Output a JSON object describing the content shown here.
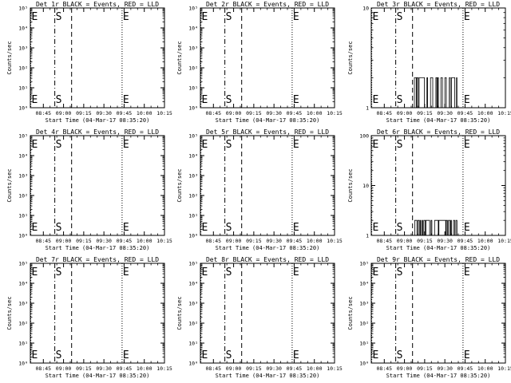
{
  "figure": {
    "type": "grid of detector count-rate plots",
    "layout": "3x3",
    "background": "#ffffff",
    "ink": "#000000"
  },
  "chart_data": [
    {
      "type": "line",
      "title": "Det 1r BLACK = Events, RED = LLD",
      "ylabel": "Counts/sec",
      "xlabel": "Start Time (04-Mar-17 08:35:20)",
      "x_ticks": [
        "08:45",
        "09:00",
        "09:15",
        "09:30",
        "09:45",
        "10:00",
        "10:15"
      ],
      "x_range": [
        "08:35:20",
        "10:15:00"
      ],
      "y_scale": "log",
      "y_ticks": [
        "10⁰",
        "10¹",
        "10²",
        "10³",
        "10⁴",
        "10⁵"
      ],
      "ylim": [
        1,
        100000
      ],
      "markers": [
        {
          "text": "E",
          "time": "08:35:40",
          "style": "dotted"
        },
        {
          "text": "S",
          "time": "08:53:30",
          "style": "dash-dot"
        },
        {
          "text": "",
          "time": "09:06:00",
          "style": "dashed"
        },
        {
          "text": "E",
          "time": "09:43:30",
          "style": "dotted"
        }
      ],
      "series": []
    },
    {
      "type": "line",
      "title": "Det 2r BLACK = Events, RED = LLD",
      "ylabel": "Counts/sec",
      "xlabel": "Start Time (04-Mar-17 08:35:20)",
      "x_ticks": [
        "08:45",
        "09:00",
        "09:15",
        "09:30",
        "09:45",
        "10:00",
        "10:15"
      ],
      "x_range": [
        "08:35:20",
        "10:15:00"
      ],
      "y_scale": "log",
      "y_ticks": [
        "10⁰",
        "10¹",
        "10²",
        "10³",
        "10⁴",
        "10⁵"
      ],
      "ylim": [
        1,
        100000
      ],
      "markers": [
        {
          "text": "E",
          "time": "08:35:40",
          "style": "dotted"
        },
        {
          "text": "S",
          "time": "08:53:30",
          "style": "dash-dot"
        },
        {
          "text": "",
          "time": "09:06:00",
          "style": "dashed"
        },
        {
          "text": "E",
          "time": "09:43:30",
          "style": "dotted"
        }
      ],
      "series": []
    },
    {
      "type": "line",
      "title": "Det 3r BLACK = Events, RED = LLD",
      "ylabel": "Counts/sec",
      "xlabel": "Start Time (04-Mar-17 08:35:20)",
      "x_ticks": [
        "08:45",
        "09:00",
        "09:15",
        "09:30",
        "09:45",
        "10:00",
        "10:15"
      ],
      "x_range": [
        "08:35:20",
        "10:15:00"
      ],
      "y_scale": "log",
      "y_ticks": [
        "1",
        "10"
      ],
      "ylim": [
        1,
        10
      ],
      "markers": [
        {
          "text": "E",
          "time": "08:35:40",
          "style": "dotted"
        },
        {
          "text": "S",
          "time": "08:53:30",
          "style": "dash-dot"
        },
        {
          "text": "",
          "time": "09:06:00",
          "style": "dashed"
        },
        {
          "text": "E",
          "time": "09:43:30",
          "style": "dotted"
        }
      ],
      "series": [
        {
          "kind": "binary-spikes",
          "t_start": "09:06:30",
          "t_end": "09:39:00",
          "low": 1,
          "high": 2
        }
      ]
    },
    {
      "type": "line",
      "title": "Det 4r BLACK = Events, RED = LLD",
      "ylabel": "Counts/sec",
      "xlabel": "Start Time (04-Mar-17 08:35:20)",
      "x_ticks": [
        "08:45",
        "09:00",
        "09:15",
        "09:30",
        "09:45",
        "10:00",
        "10:15"
      ],
      "x_range": [
        "08:35:20",
        "10:15:00"
      ],
      "y_scale": "log",
      "y_ticks": [
        "10⁰",
        "10¹",
        "10²",
        "10³",
        "10⁴",
        "10⁵"
      ],
      "ylim": [
        1,
        100000
      ],
      "markers": [
        {
          "text": "E",
          "time": "08:35:40",
          "style": "dotted"
        },
        {
          "text": "S",
          "time": "08:53:30",
          "style": "dash-dot"
        },
        {
          "text": "",
          "time": "09:06:00",
          "style": "dashed"
        },
        {
          "text": "E",
          "time": "09:43:30",
          "style": "dotted"
        }
      ],
      "series": []
    },
    {
      "type": "line",
      "title": "Det 5r BLACK = Events, RED = LLD",
      "ylabel": "Counts/sec",
      "xlabel": "Start Time (04-Mar-17 08:35:20)",
      "x_ticks": [
        "08:45",
        "09:00",
        "09:15",
        "09:30",
        "09:45",
        "10:00",
        "10:15"
      ],
      "x_range": [
        "08:35:20",
        "10:15:00"
      ],
      "y_scale": "log",
      "y_ticks": [
        "10⁰",
        "10¹",
        "10²",
        "10³",
        "10⁴",
        "10⁵"
      ],
      "ylim": [
        1,
        100000
      ],
      "markers": [
        {
          "text": "E",
          "time": "08:35:40",
          "style": "dotted"
        },
        {
          "text": "S",
          "time": "08:53:30",
          "style": "dash-dot"
        },
        {
          "text": "",
          "time": "09:06:00",
          "style": "dashed"
        },
        {
          "text": "E",
          "time": "09:43:30",
          "style": "dotted"
        }
      ],
      "series": []
    },
    {
      "type": "line",
      "title": "Det 6r BLACK = Events, RED = LLD",
      "ylabel": "Counts/sec",
      "xlabel": "Start Time (04-Mar-17 08:35:20)",
      "x_ticks": [
        "08:45",
        "09:00",
        "09:15",
        "09:30",
        "09:45",
        "10:00",
        "10:15"
      ],
      "x_range": [
        "08:35:20",
        "10:15:00"
      ],
      "y_scale": "log",
      "y_ticks": [
        "1",
        "10",
        "100"
      ],
      "ylim": [
        1,
        100
      ],
      "markers": [
        {
          "text": "E",
          "time": "08:35:40",
          "style": "dotted"
        },
        {
          "text": "S",
          "time": "08:53:30",
          "style": "dash-dot"
        },
        {
          "text": "",
          "time": "09:06:00",
          "style": "dashed"
        },
        {
          "text": "E",
          "time": "09:43:30",
          "style": "dotted"
        }
      ],
      "series": [
        {
          "kind": "binary-spikes",
          "t_start": "09:06:30",
          "t_end": "09:39:00",
          "low": 1,
          "high": 2
        }
      ]
    },
    {
      "type": "line",
      "title": "Det 7r BLACK = Events, RED = LLD",
      "ylabel": "Counts/sec",
      "xlabel": "Start Time (04-Mar-17 08:35:20)",
      "x_ticks": [
        "08:45",
        "09:00",
        "09:15",
        "09:30",
        "09:45",
        "10:00",
        "10:15"
      ],
      "x_range": [
        "08:35:20",
        "10:15:00"
      ],
      "y_scale": "log",
      "y_ticks": [
        "10⁰",
        "10¹",
        "10²",
        "10³",
        "10⁴",
        "10⁵"
      ],
      "ylim": [
        1,
        100000
      ],
      "markers": [
        {
          "text": "E",
          "time": "08:35:40",
          "style": "dotted"
        },
        {
          "text": "S",
          "time": "08:53:30",
          "style": "dash-dot"
        },
        {
          "text": "",
          "time": "09:06:00",
          "style": "dashed"
        },
        {
          "text": "E",
          "time": "09:43:30",
          "style": "dotted"
        }
      ],
      "series": []
    },
    {
      "type": "line",
      "title": "Det 8r BLACK = Events, RED = LLD",
      "ylabel": "Counts/sec",
      "xlabel": "Start Time (04-Mar-17 08:35:20)",
      "x_ticks": [
        "08:45",
        "09:00",
        "09:15",
        "09:30",
        "09:45",
        "10:00",
        "10:15"
      ],
      "x_range": [
        "08:35:20",
        "10:15:00"
      ],
      "y_scale": "log",
      "y_ticks": [
        "10⁰",
        "10¹",
        "10²",
        "10³",
        "10⁴",
        "10⁵"
      ],
      "ylim": [
        1,
        100000
      ],
      "markers": [
        {
          "text": "E",
          "time": "08:35:40",
          "style": "dotted"
        },
        {
          "text": "S",
          "time": "08:53:30",
          "style": "dash-dot"
        },
        {
          "text": "",
          "time": "09:06:00",
          "style": "dashed"
        },
        {
          "text": "E",
          "time": "09:43:30",
          "style": "dotted"
        }
      ],
      "series": []
    },
    {
      "type": "line",
      "title": "Det 9r BLACK = Events, RED = LLD",
      "ylabel": "Counts/sec",
      "xlabel": "Start Time (04-Mar-17 08:35:20)",
      "x_ticks": [
        "08:45",
        "09:00",
        "09:15",
        "09:30",
        "09:45",
        "10:00",
        "10:15"
      ],
      "x_range": [
        "08:35:20",
        "10:15:00"
      ],
      "y_scale": "log",
      "y_ticks": [
        "10⁰",
        "10¹",
        "10²",
        "10³",
        "10⁴",
        "10⁵"
      ],
      "ylim": [
        1,
        100000
      ],
      "markers": [
        {
          "text": "E",
          "time": "08:35:40",
          "style": "dotted"
        },
        {
          "text": "S",
          "time": "08:53:30",
          "style": "dash-dot"
        },
        {
          "text": "",
          "time": "09:06:00",
          "style": "dashed"
        },
        {
          "text": "E",
          "time": "09:43:30",
          "style": "dotted"
        }
      ],
      "series": []
    }
  ]
}
